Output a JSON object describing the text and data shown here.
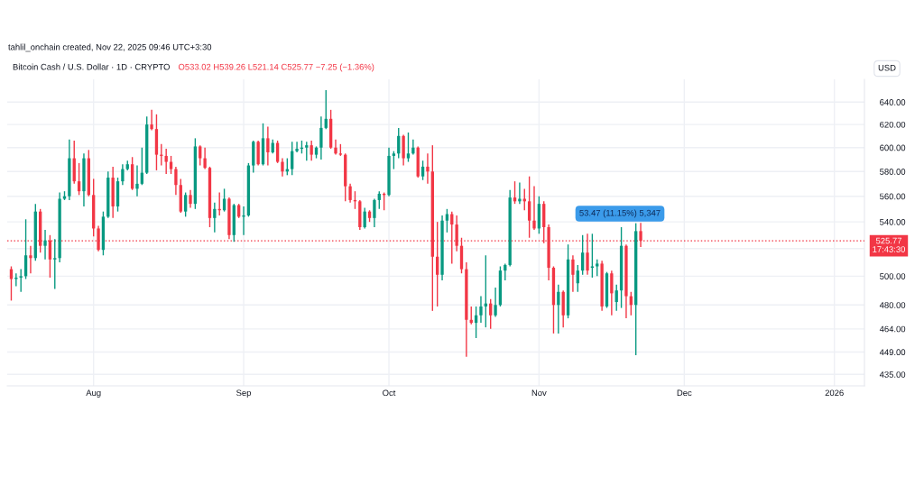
{
  "chart_data": {
    "type": "candlestick",
    "title": "Bitcoin Cash / U.S. Dollar · 1D · CRYPTO",
    "ylabel": "USD",
    "annotations": [
      "tahlil_onchain created, Nov 22, 2025 09:46 UTC+3:30",
      "O533.02 H539.26 L521.14 C525.77 −7.25 (−1.36%)",
      "53.47 (11.15%) 5,347"
    ],
    "x": [
      "2025-07-15",
      "2025-07-16",
      "2025-07-17",
      "2025-07-18",
      "2025-07-19",
      "2025-07-20",
      "2025-07-21",
      "2025-07-22",
      "2025-07-23",
      "2025-07-24",
      "2025-07-25",
      "2025-07-26",
      "2025-07-27",
      "2025-07-28",
      "2025-07-29",
      "2025-07-30",
      "2025-07-31",
      "2025-08-01",
      "2025-08-02",
      "2025-08-03",
      "2025-08-04",
      "2025-08-05",
      "2025-08-06",
      "2025-08-07",
      "2025-08-08",
      "2025-08-09",
      "2025-08-10",
      "2025-08-11",
      "2025-08-12",
      "2025-08-13",
      "2025-08-14",
      "2025-08-15",
      "2025-08-16",
      "2025-08-17",
      "2025-08-18",
      "2025-08-19",
      "2025-08-20",
      "2025-08-21",
      "2025-08-22",
      "2025-08-23",
      "2025-08-24",
      "2025-08-25",
      "2025-08-26",
      "2025-08-27",
      "2025-08-28",
      "2025-08-29",
      "2025-08-30",
      "2025-08-31",
      "2025-09-01",
      "2025-09-02",
      "2025-09-03",
      "2025-09-04",
      "2025-09-05",
      "2025-09-06",
      "2025-09-07",
      "2025-09-08",
      "2025-09-09",
      "2025-09-10",
      "2025-09-11",
      "2025-09-12",
      "2025-09-13",
      "2025-09-14",
      "2025-09-15",
      "2025-09-16",
      "2025-09-17",
      "2025-09-18",
      "2025-09-19",
      "2025-09-20",
      "2025-09-21",
      "2025-09-22",
      "2025-09-23",
      "2025-09-24",
      "2025-09-25",
      "2025-09-26",
      "2025-09-27",
      "2025-09-28",
      "2025-09-29",
      "2025-09-30",
      "2025-10-01",
      "2025-10-02",
      "2025-10-03",
      "2025-10-04",
      "2025-10-05",
      "2025-10-06",
      "2025-10-07",
      "2025-10-08",
      "2025-10-09",
      "2025-10-10",
      "2025-10-11",
      "2025-10-12",
      "2025-10-13",
      "2025-10-14",
      "2025-10-15",
      "2025-10-16",
      "2025-10-17",
      "2025-10-18",
      "2025-10-19",
      "2025-10-20",
      "2025-10-21",
      "2025-10-22",
      "2025-10-23",
      "2025-10-24",
      "2025-10-25",
      "2025-10-26",
      "2025-10-27",
      "2025-10-28",
      "2025-10-29",
      "2025-10-30",
      "2025-10-31",
      "2025-11-01",
      "2025-11-02",
      "2025-11-03",
      "2025-11-04",
      "2025-11-05",
      "2025-11-06",
      "2025-11-07",
      "2025-11-08",
      "2025-11-09",
      "2025-11-10",
      "2025-11-11",
      "2025-11-12",
      "2025-11-13",
      "2025-11-14",
      "2025-11-15",
      "2025-11-16",
      "2025-11-17",
      "2025-11-18",
      "2025-11-19",
      "2025-11-20",
      "2025-11-21",
      "2025-11-22"
    ],
    "ohlc": [
      [
        505,
        507,
        483,
        498
      ],
      [
        498,
        502,
        493,
        499
      ],
      [
        499,
        505,
        489,
        500
      ],
      [
        500,
        542,
        498,
        515
      ],
      [
        515,
        522,
        502,
        513
      ],
      [
        513,
        554,
        511,
        548
      ],
      [
        548,
        550,
        517,
        522
      ],
      [
        522,
        534,
        512,
        526
      ],
      [
        526,
        530,
        499,
        512
      ],
      [
        512,
        527,
        491,
        513
      ],
      [
        513,
        563,
        510,
        558
      ],
      [
        558,
        564,
        557,
        560
      ],
      [
        560,
        607,
        557,
        591
      ],
      [
        591,
        606,
        570,
        572
      ],
      [
        572,
        587,
        561,
        564
      ],
      [
        564,
        595,
        552,
        591
      ],
      [
        591,
        598,
        560,
        561
      ],
      [
        561,
        574,
        529,
        535
      ],
      [
        535,
        537,
        518,
        519
      ],
      [
        519,
        548,
        515,
        544
      ],
      [
        544,
        580,
        543,
        575
      ],
      [
        575,
        584,
        543,
        552
      ],
      [
        552,
        575,
        548,
        572
      ],
      [
        572,
        586,
        569,
        582
      ],
      [
        582,
        589,
        581,
        586
      ],
      [
        586,
        592,
        565,
        566
      ],
      [
        566,
        585,
        560,
        570
      ],
      [
        570,
        600,
        569,
        579
      ],
      [
        579,
        627,
        578,
        620
      ],
      [
        620,
        633,
        615,
        616
      ],
      [
        616,
        629,
        581,
        594
      ],
      [
        594,
        603,
        585,
        593
      ],
      [
        593,
        599,
        578,
        588
      ],
      [
        588,
        593,
        578,
        582
      ],
      [
        582,
        584,
        561,
        569
      ],
      [
        569,
        574,
        547,
        548
      ],
      [
        548,
        563,
        544,
        561
      ],
      [
        561,
        565,
        551,
        554
      ],
      [
        554,
        608,
        550,
        601
      ],
      [
        601,
        602,
        585,
        591
      ],
      [
        591,
        600,
        582,
        583
      ],
      [
        583,
        584,
        536,
        543
      ],
      [
        543,
        555,
        532,
        550
      ],
      [
        550,
        563,
        545,
        549
      ],
      [
        549,
        566,
        548,
        558
      ],
      [
        558,
        559,
        527,
        530
      ],
      [
        530,
        554,
        525,
        553
      ],
      [
        553,
        554,
        543,
        544
      ],
      [
        544,
        552,
        530,
        545
      ],
      [
        545,
        587,
        544,
        585
      ],
      [
        585,
        606,
        579,
        605
      ],
      [
        605,
        606,
        585,
        586
      ],
      [
        586,
        621,
        585,
        608
      ],
      [
        608,
        618,
        585,
        596
      ],
      [
        596,
        607,
        595,
        604
      ],
      [
        604,
        606,
        587,
        588
      ],
      [
        588,
        591,
        576,
        580
      ],
      [
        580,
        591,
        577,
        582
      ],
      [
        582,
        605,
        577,
        597
      ],
      [
        597,
        605,
        596,
        599
      ],
      [
        599,
        606,
        595,
        600
      ],
      [
        600,
        605,
        589,
        602
      ],
      [
        602,
        606,
        589,
        594
      ],
      [
        594,
        601,
        591,
        600
      ],
      [
        600,
        627,
        590,
        617
      ],
      [
        617,
        651,
        616,
        625
      ],
      [
        625,
        633,
        599,
        600
      ],
      [
        600,
        607,
        594,
        595
      ],
      [
        595,
        603,
        593,
        594
      ],
      [
        594,
        595,
        556,
        568
      ],
      [
        568,
        570,
        555,
        557
      ],
      [
        557,
        564,
        550,
        556
      ],
      [
        556,
        557,
        534,
        536
      ],
      [
        536,
        551,
        535,
        548
      ],
      [
        548,
        549,
        540,
        543
      ],
      [
        543,
        558,
        536,
        557
      ],
      [
        557,
        564,
        550,
        562
      ],
      [
        562,
        563,
        549,
        561
      ],
      [
        561,
        600,
        560,
        593
      ],
      [
        593,
        597,
        582,
        595
      ],
      [
        595,
        617,
        591,
        610
      ],
      [
        610,
        611,
        585,
        591
      ],
      [
        591,
        613,
        588,
        595
      ],
      [
        595,
        607,
        594,
        600
      ],
      [
        600,
        601,
        575,
        576
      ],
      [
        576,
        589,
        573,
        584
      ],
      [
        584,
        595,
        570,
        580
      ],
      [
        580,
        602,
        476,
        514
      ],
      [
        514,
        540,
        479,
        501
      ],
      [
        501,
        545,
        497,
        541
      ],
      [
        541,
        550,
        532,
        546
      ],
      [
        546,
        548,
        509,
        538
      ],
      [
        538,
        545,
        518,
        522
      ],
      [
        522,
        528,
        502,
        505
      ],
      [
        505,
        510,
        446,
        470
      ],
      [
        470,
        479,
        467,
        468
      ],
      [
        468,
        479,
        458,
        473
      ],
      [
        473,
        486,
        468,
        479
      ],
      [
        479,
        515,
        465,
        481
      ],
      [
        481,
        484,
        464,
        473
      ],
      [
        473,
        492,
        472,
        480
      ],
      [
        480,
        507,
        479,
        504
      ],
      [
        504,
        509,
        497,
        508
      ],
      [
        508,
        565,
        507,
        559
      ],
      [
        559,
        572,
        554,
        556
      ],
      [
        556,
        571,
        554,
        558
      ],
      [
        558,
        566,
        549,
        556
      ],
      [
        556,
        576,
        528,
        541
      ],
      [
        541,
        568,
        534,
        535
      ],
      [
        535,
        560,
        531,
        554
      ],
      [
        554,
        556,
        524,
        536
      ],
      [
        536,
        538,
        497,
        506
      ],
      [
        506,
        507,
        461,
        480
      ],
      [
        480,
        494,
        461,
        489
      ],
      [
        489,
        490,
        465,
        473
      ],
      [
        473,
        523,
        471,
        512
      ],
      [
        512,
        515,
        489,
        501
      ],
      [
        495,
        508,
        489,
        504
      ],
      [
        504,
        530,
        501,
        517
      ],
      [
        517,
        531,
        501,
        504
      ],
      [
        506,
        531,
        499,
        507
      ],
      [
        507,
        512,
        500,
        509
      ],
      [
        509,
        511,
        476,
        479
      ],
      [
        479,
        503,
        478,
        502
      ],
      [
        502,
        504,
        473,
        488
      ],
      [
        482,
        494,
        476,
        490
      ],
      [
        490,
        536,
        478,
        522
      ],
      [
        522,
        523,
        471,
        486
      ],
      [
        486,
        489,
        473,
        480
      ],
      [
        480,
        539,
        447,
        533
      ],
      [
        533.02,
        539.26,
        521.14,
        525.77
      ]
    ],
    "xlim": [
      "2025-07-14T04:00",
      "2026-01-07T05:00"
    ],
    "ylim": [
      428,
      661
    ],
    "log": true,
    "xticks": [
      {
        "value": "2025-08-01",
        "label": "Aug"
      },
      {
        "value": "2025-09-01",
        "label": "Sep"
      },
      {
        "value": "2025-10-01",
        "label": "Oct"
      },
      {
        "value": "2025-11-01",
        "label": "Nov"
      },
      {
        "value": "2025-12-01",
        "label": "Dec"
      },
      {
        "value": "2026-01-01",
        "label": "2026"
      }
    ],
    "yticks": [
      {
        "value": 435,
        "label": "435.00"
      },
      {
        "value": 449,
        "label": "449.00"
      },
      {
        "value": 464,
        "label": "464.00"
      },
      {
        "value": 480,
        "label": "480.00"
      },
      {
        "value": 500,
        "label": "500.00"
      },
      {
        "value": 520,
        "label": null
      },
      {
        "value": 540,
        "label": "540.00"
      },
      {
        "value": 560,
        "label": "560.00"
      },
      {
        "value": 580,
        "label": "580.00"
      },
      {
        "value": 600,
        "label": "600.00"
      },
      {
        "value": 620,
        "label": "620.00"
      },
      {
        "value": 640,
        "label": "640.00"
      }
    ],
    "grid": true,
    "ref_lines": [
      {
        "axis": "y",
        "value": 525.77,
        "label": "525.77\n17:43:30",
        "color": "#f23645",
        "line_style": "dotted"
      }
    ]
  }
}
